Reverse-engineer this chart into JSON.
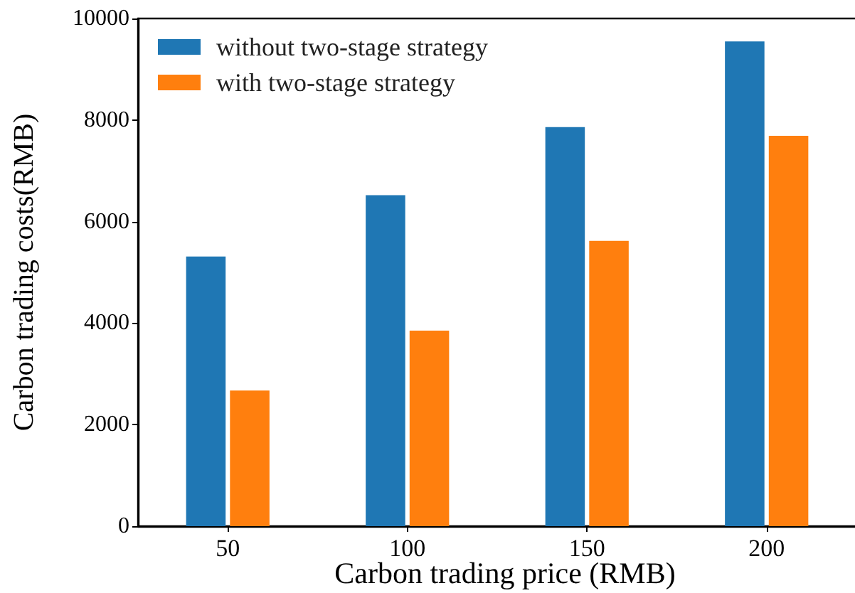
{
  "chart_data": {
    "type": "bar",
    "xlabel": "Carbon trading price (RMB)",
    "ylabel": "Carbon trading costs(RMB)",
    "categories": [
      "50",
      "100",
      "150",
      "200"
    ],
    "series": [
      {
        "name": "without two-stage strategy",
        "color": "#1f77b4",
        "values": [
          5310,
          6520,
          7860,
          9550
        ]
      },
      {
        "name": "with two-stage strategy",
        "color": "#ff7f0e",
        "values": [
          2670,
          3850,
          5620,
          7690
        ]
      }
    ],
    "ylim": [
      0,
      10000
    ],
    "yticks": [
      0,
      2000,
      4000,
      6000,
      8000,
      10000
    ],
    "grid": false,
    "legend": "top left"
  }
}
